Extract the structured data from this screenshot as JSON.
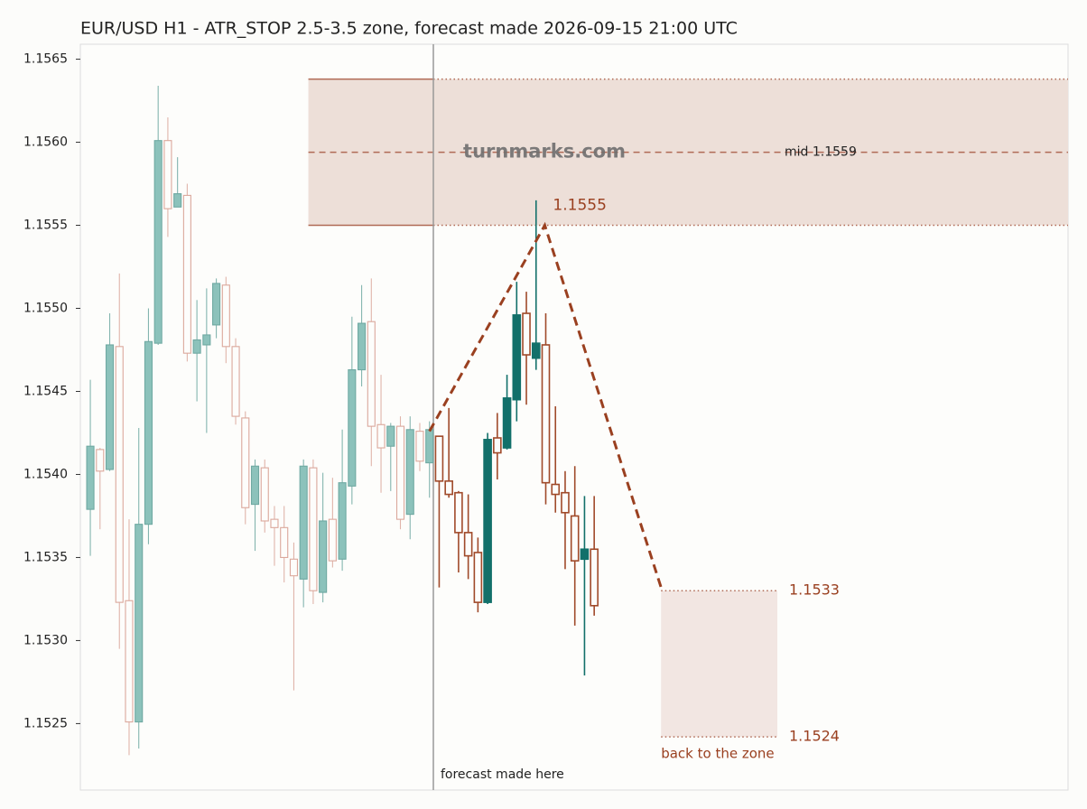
{
  "chart_data": {
    "type": "candlestick",
    "title": "EUR/USD H1 - ATR_STOP 2.5-3.5 zone, forecast made 2026-09-15 21:00 UTC",
    "xlim": [
      -1.03,
      100.9
    ],
    "ylim": [
      1.1521,
      1.15659
    ],
    "yticks": [
      1.1525,
      {
        "value": 1.153,
        "label": "1.1530"
      },
      1.1535,
      {
        "value": 1.154,
        "label": "1.1540"
      },
      1.1545,
      {
        "value": 1.155,
        "label": "1.1550"
      },
      1.1555,
      {
        "value": 1.156,
        "label": "1.1560"
      },
      1.1565
    ],
    "colors": {
      "history_up": "#8cc2bb",
      "history_up_edge": "#6fa9a2",
      "history_down": "#dba89c",
      "forecast_up": "#12706a",
      "forecast_down": "#a04a2a"
    },
    "open": [
      1.15379,
      1.15415,
      1.15403,
      1.15477,
      1.15324,
      1.15251,
      1.1537,
      1.15479,
      1.15601,
      1.15561,
      1.15568,
      1.15473,
      1.15478,
      1.1549,
      1.15514,
      1.15477,
      1.15434,
      1.15382,
      1.15404,
      1.15373,
      1.15368,
      1.15349,
      1.15337,
      1.15404,
      1.15329,
      1.15373,
      1.15349,
      1.15393,
      1.15463,
      1.15492,
      1.1543,
      1.15417,
      1.15429,
      1.15376,
      1.15426,
      1.15407,
      1.15423,
      1.15396,
      1.15389,
      1.15365,
      1.15353,
      1.15323,
      1.15422,
      1.15416,
      1.15445,
      1.15497,
      1.1547,
      1.15478,
      1.15394,
      1.15389,
      1.15375,
      1.15349,
      1.15355
    ],
    "high": [
      1.15457,
      1.15416,
      1.15497,
      1.15521,
      1.15373,
      1.15428,
      1.155,
      1.15634,
      1.15615,
      1.15591,
      1.15575,
      1.15505,
      1.15512,
      1.15518,
      1.15519,
      1.15482,
      1.15438,
      1.15409,
      1.15409,
      1.15381,
      1.15381,
      1.15359,
      1.15409,
      1.15409,
      1.15401,
      1.15398,
      1.15427,
      1.15495,
      1.15514,
      1.15518,
      1.1546,
      1.15431,
      1.15435,
      1.15435,
      1.15431,
      1.15432,
      1.15423,
      1.1544,
      1.1539,
      1.15388,
      1.15362,
      1.15425,
      1.15437,
      1.1546,
      1.15516,
      1.1551,
      1.15565,
      1.15497,
      1.15441,
      1.15402,
      1.15405,
      1.15387,
      1.15387
    ],
    "low": [
      1.15351,
      1.15367,
      1.15402,
      1.15295,
      1.15231,
      1.15235,
      1.15358,
      1.15478,
      1.15543,
      1.15561,
      1.15468,
      1.15444,
      1.15425,
      1.15482,
      1.15467,
      1.1543,
      1.1537,
      1.15354,
      1.15365,
      1.15345,
      1.15335,
      1.1527,
      1.1532,
      1.15322,
      1.15323,
      1.15344,
      1.15342,
      1.15382,
      1.15453,
      1.15405,
      1.15389,
      1.1539,
      1.15367,
      1.15361,
      1.15402,
      1.15386,
      1.15332,
      1.15386,
      1.15341,
      1.15337,
      1.15317,
      1.15322,
      1.15397,
      1.15415,
      1.15432,
      1.15442,
      1.15463,
      1.15382,
      1.15377,
      1.15343,
      1.15309,
      1.15279,
      1.15315
    ],
    "close": [
      1.15417,
      1.15402,
      1.15478,
      1.15323,
      1.15251,
      1.1537,
      1.1548,
      1.15601,
      1.1556,
      1.15569,
      1.15473,
      1.15481,
      1.15484,
      1.15515,
      1.15477,
      1.15435,
      1.1538,
      1.15405,
      1.15372,
      1.15368,
      1.1535,
      1.15339,
      1.15405,
      1.1533,
      1.15372,
      1.15348,
      1.15395,
      1.15463,
      1.15491,
      1.15429,
      1.15416,
      1.15429,
      1.15373,
      1.15427,
      1.15408,
      1.15427,
      1.15396,
      1.15388,
      1.15365,
      1.15351,
      1.15323,
      1.15421,
      1.15413,
      1.15446,
      1.15496,
      1.15472,
      1.15479,
      1.15395,
      1.15388,
      1.15377,
      1.15348,
      1.15355,
      1.15321
    ],
    "forecast_x": 35.4,
    "forecast_label": "forecast made here",
    "zone": {
      "x_start": 22.5,
      "top": 1.15638,
      "bottom": 1.1555,
      "mid": 1.15594,
      "mid_label": "mid 1.1559",
      "color": "#eddfd8",
      "edge": "#b06a55"
    },
    "forecast_path": {
      "x": [
        35,
        46.9,
        58.9
      ],
      "y": [
        1.15426,
        1.1555,
        1.15332
      ],
      "color": "#9a4020"
    },
    "target": {
      "x_start": 58.9,
      "x_end": 70.9,
      "top": 1.1533,
      "bottom": 1.15242,
      "bottom_label": "1.1524",
      "label": "back to the zone",
      "color": "#f2e6e2"
    },
    "watermark": "turnmarks.com"
  }
}
